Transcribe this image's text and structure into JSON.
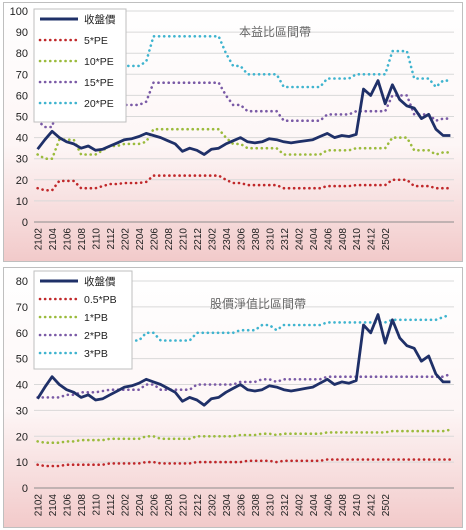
{
  "chart_data": [
    {
      "type": "line",
      "title": "本益比區間帶",
      "ylim": [
        0,
        100
      ],
      "yticks": [
        0,
        10,
        20,
        30,
        40,
        50,
        60,
        70,
        80,
        90,
        100
      ],
      "xtick_labels": [
        "2102",
        "2104",
        "2106",
        "2108",
        "2110",
        "2112",
        "2202",
        "2204",
        "2206",
        "2208",
        "2210",
        "2212",
        "2302",
        "2304",
        "2306",
        "2308",
        "2310",
        "2312",
        "2402",
        "2404",
        "2406",
        "2408",
        "2410",
        "2412",
        "2502"
      ],
      "grid": true,
      "legend_position": "top-left",
      "series": [
        {
          "name": "收盤價",
          "color": "#1f3068",
          "style": "solid",
          "values": [
            34.5,
            39,
            43,
            40,
            38,
            37,
            35,
            36,
            34,
            34.5,
            36,
            37.5,
            39,
            39.5,
            40.5,
            42,
            41,
            40,
            38.5,
            37,
            33.5,
            35,
            34,
            32,
            34.5,
            35,
            37,
            38.5,
            40,
            38,
            37.5,
            38,
            39.5,
            39,
            38,
            37.5,
            38,
            38.5,
            39,
            40.5,
            42,
            40,
            41,
            40.5,
            41.5,
            63,
            60,
            67,
            56,
            65,
            58,
            55,
            54,
            49,
            51,
            44,
            41,
            41
          ]
        },
        {
          "name": "5*PE",
          "color": "#c0282a",
          "style": "dotted",
          "values": [
            16,
            15,
            15,
            19.5,
            19.5,
            19.5,
            16,
            16,
            16,
            17,
            18,
            18,
            18.5,
            18.5,
            18.5,
            19,
            22,
            22,
            22,
            22,
            22,
            22,
            22,
            22,
            22,
            22,
            20,
            18.5,
            18.5,
            17.5,
            17.5,
            17.5,
            17.5,
            17.5,
            16,
            16,
            16,
            16,
            16,
            16,
            17,
            17,
            17,
            17,
            17.5,
            17.5,
            17.5,
            17.5,
            17.5,
            20,
            20,
            20,
            17,
            17,
            17,
            16,
            16,
            16
          ]
        },
        {
          "name": "10*PE",
          "color": "#9bbb3c",
          "style": "dotted",
          "values": [
            32,
            30,
            30,
            39,
            39,
            39,
            32,
            32,
            32,
            34,
            36,
            36,
            37,
            37,
            37,
            38,
            44,
            44,
            44,
            44,
            44,
            44,
            44,
            44,
            44,
            44,
            40,
            37,
            37,
            35,
            35,
            35,
            35,
            35,
            32,
            32,
            32,
            32,
            32,
            32,
            34,
            34,
            34,
            34,
            35,
            35,
            35,
            35,
            35,
            40,
            40,
            40,
            34,
            34,
            34,
            32,
            33,
            33
          ]
        },
        {
          "name": "15*PE",
          "color": "#7a5aa6",
          "style": "dotted",
          "values": [
            48,
            45,
            45,
            58,
            58,
            58,
            48,
            48,
            48,
            51,
            54,
            54,
            55.5,
            55.5,
            55.5,
            57,
            66,
            66,
            66,
            66,
            66,
            66,
            66,
            66,
            66,
            66,
            60,
            55.5,
            55.5,
            52.5,
            52.5,
            52.5,
            52.5,
            52.5,
            48,
            48,
            48,
            48,
            48,
            48,
            51,
            51,
            51,
            51,
            52.5,
            52.5,
            52.5,
            52.5,
            52.5,
            60,
            60,
            60,
            51,
            51,
            51,
            48,
            49,
            49
          ]
        },
        {
          "name": "20*PE",
          "color": "#3fb4cf",
          "style": "dotted",
          "values": [
            64,
            60,
            60,
            78,
            78,
            78,
            64,
            64,
            64,
            68,
            72,
            72,
            74,
            74,
            74,
            76,
            88,
            88,
            88,
            88,
            88,
            88,
            88,
            88,
            88,
            88,
            80,
            74,
            74,
            70,
            70,
            70,
            70,
            70,
            64,
            64,
            64,
            64,
            64,
            64,
            68,
            68,
            68,
            68,
            70,
            70,
            70,
            70,
            70,
            81,
            81,
            81,
            68,
            68,
            68,
            64,
            67,
            67
          ]
        }
      ]
    },
    {
      "type": "line",
      "title": "股價淨值比區間帶",
      "ylim": [
        0,
        80
      ],
      "yticks": [
        0,
        10,
        20,
        30,
        40,
        50,
        60,
        70,
        80
      ],
      "xtick_labels": [
        "2102",
        "2104",
        "2106",
        "2108",
        "2110",
        "2112",
        "2202",
        "2204",
        "2206",
        "2208",
        "2210",
        "2212",
        "2302",
        "2304",
        "2306",
        "2308",
        "2310",
        "2312",
        "2402",
        "2404",
        "2406",
        "2408",
        "2410",
        "2412",
        "2502"
      ],
      "grid": true,
      "legend_position": "top-left",
      "series": [
        {
          "name": "收盤價",
          "color": "#1f3068",
          "style": "solid",
          "values": [
            34.5,
            39,
            43,
            40,
            38,
            37,
            35,
            36,
            34,
            34.5,
            36,
            37.5,
            39,
            39.5,
            40.5,
            42,
            41,
            40,
            38.5,
            37,
            33.5,
            35,
            34,
            32,
            34.5,
            35,
            37,
            38.5,
            40,
            38,
            37.5,
            38,
            39.5,
            39,
            38,
            37.5,
            38,
            38.5,
            39,
            40.5,
            42,
            40,
            41,
            40.5,
            41.5,
            63,
            60,
            67,
            56,
            65,
            58,
            55,
            54,
            49,
            51,
            44,
            41,
            41
          ]
        },
        {
          "name": "0.5*PB",
          "color": "#c0282a",
          "style": "dotted",
          "values": [
            9,
            8.5,
            8.5,
            8.5,
            9,
            9,
            9,
            9,
            9,
            9,
            9.5,
            9.5,
            9.5,
            9.5,
            9.5,
            10,
            10,
            9.5,
            9.5,
            9.5,
            9.5,
            9.5,
            10,
            10,
            10,
            10,
            10,
            10,
            10,
            10.5,
            10.5,
            10.5,
            10.5,
            10,
            10.5,
            10.5,
            10.5,
            10.5,
            10.5,
            10.5,
            11,
            11,
            11,
            11,
            11,
            11,
            11,
            11,
            11,
            11,
            11,
            11,
            11,
            11,
            11,
            11,
            11,
            11
          ]
        },
        {
          "name": "1*PB",
          "color": "#9bbb3c",
          "style": "dotted",
          "values": [
            18,
            17.5,
            17.5,
            17.5,
            18,
            18,
            18.5,
            18.5,
            18.5,
            18.5,
            19,
            19,
            19,
            19,
            19,
            20,
            20,
            19,
            19,
            19,
            19,
            19,
            20,
            20,
            20,
            20,
            20,
            20,
            20.5,
            20.5,
            20.5,
            21,
            21,
            20.5,
            21,
            21,
            21,
            21,
            21,
            21,
            21.5,
            21.5,
            21.5,
            21.5,
            21.5,
            21.5,
            21.5,
            21.5,
            21.5,
            22,
            22,
            22,
            22,
            22,
            22,
            22,
            22,
            22.5
          ]
        },
        {
          "name": "2*PB",
          "color": "#7a5aa6",
          "style": "dotted",
          "values": [
            35,
            35,
            35,
            35,
            36,
            36,
            37,
            37,
            37,
            37.5,
            38,
            38,
            38,
            38,
            38,
            40,
            40,
            38,
            38,
            38,
            38,
            38,
            40,
            40,
            40,
            40,
            40,
            40,
            41,
            41,
            41,
            42,
            42,
            41,
            42,
            42,
            42,
            42,
            42,
            42,
            43,
            43,
            43,
            43,
            43,
            43,
            43,
            43,
            43,
            43,
            43,
            43,
            43,
            43,
            43,
            43,
            43,
            44
          ]
        },
        {
          "name": "3*PB",
          "color": "#3fb4cf",
          "style": "dotted",
          "values": [
            53,
            52,
            52,
            52,
            54,
            54,
            55,
            55,
            55,
            56,
            57,
            57,
            57,
            57,
            57,
            60,
            60,
            57,
            57,
            57,
            57,
            57,
            60,
            60,
            60,
            60,
            60,
            60,
            61,
            61,
            61,
            63,
            63,
            61,
            63,
            63,
            63,
            63,
            63,
            63,
            64,
            64,
            64,
            64,
            64,
            64,
            64,
            64,
            64,
            65,
            65,
            65,
            65,
            65,
            65,
            65,
            66,
            67
          ]
        }
      ]
    }
  ]
}
